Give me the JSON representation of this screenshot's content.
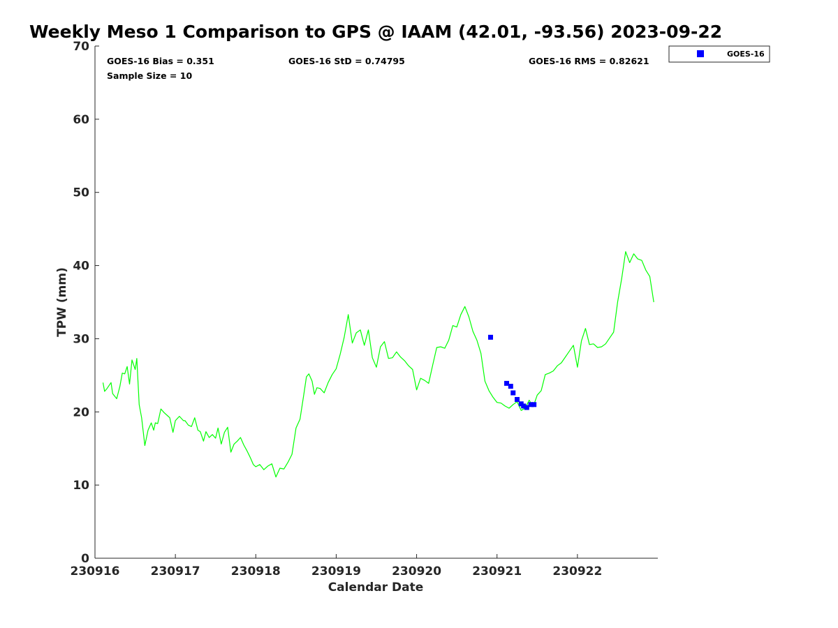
{
  "chart_data": {
    "type": "line",
    "title": "Weekly Meso 1 Comparison to GPS @ IAAM (42.01, -93.56) 2023-09-22",
    "xlabel": "Calendar Date",
    "ylabel": "TPW (mm)",
    "x_unit": "day",
    "xlim": [
      230916,
      230923
    ],
    "ylim": [
      0,
      70
    ],
    "x_ticks": [
      230916,
      230917,
      230918,
      230919,
      230920,
      230921,
      230922
    ],
    "x_tick_labels": [
      "230916",
      "230917",
      "230918",
      "230919",
      "230920",
      "230921",
      "230922"
    ],
    "y_ticks": [
      0,
      10,
      20,
      30,
      40,
      50,
      60,
      70
    ],
    "y_tick_labels": [
      "0",
      "10",
      "20",
      "30",
      "40",
      "50",
      "60",
      "70"
    ],
    "grid": false,
    "legend_position": "top-right (outside axes)",
    "stats": {
      "bias": "GOES-16 Bias = 0.351",
      "std": "GOES-16 StD = 0.74795",
      "rms": "GOES-16 RMS = 0.82621",
      "sample": "Sample Size = 10"
    },
    "series": [
      {
        "role": "gps",
        "style": "line",
        "color": "#00ff00",
        "x": [
          230916.1,
          230916.12,
          230916.15,
          230916.2,
          230916.22,
          230916.27,
          230916.31,
          230916.34,
          230916.37,
          230916.4,
          230916.43,
          230916.46,
          230916.5,
          230916.52,
          230916.55,
          230916.58,
          230916.62,
          230916.66,
          230916.7,
          230916.73,
          230916.75,
          230916.78,
          230916.82,
          230916.86,
          230916.9,
          230916.93,
          230916.97,
          230917.0,
          230917.05,
          230917.1,
          230917.12,
          230917.16,
          230917.2,
          230917.24,
          230917.28,
          230917.31,
          230917.35,
          230917.38,
          230917.42,
          230917.46,
          230917.5,
          230917.53,
          230917.57,
          230917.61,
          230917.65,
          230917.69,
          230917.73,
          230917.77,
          230917.81,
          230917.85,
          230917.89,
          230917.93,
          230917.97,
          230918.0,
          230918.05,
          230918.1,
          230918.15,
          230918.2,
          230918.25,
          230918.3,
          230918.35,
          230918.4,
          230918.45,
          230918.5,
          230918.55,
          230918.6,
          230918.63,
          230918.66,
          230918.7,
          230918.73,
          230918.76,
          230918.8,
          230918.85,
          230918.9,
          230918.95,
          230919.0,
          230919.05,
          230919.1,
          230919.15,
          230919.2,
          230919.25,
          230919.3,
          230919.35,
          230919.4,
          230919.45,
          230919.5,
          230919.55,
          230919.6,
          230919.65,
          230919.7,
          230919.75,
          230919.8,
          230919.85,
          230919.9,
          230919.95,
          230920.0,
          230920.05,
          230920.1,
          230920.15,
          230920.2,
          230920.25,
          230920.3,
          230920.35,
          230920.4,
          230920.45,
          230920.5,
          230920.55,
          230920.6,
          230920.65,
          230920.7,
          230920.75,
          230920.8,
          230920.85,
          230920.9,
          230920.95,
          230921.0,
          230921.05,
          230921.1,
          230921.15,
          230921.2,
          230921.25,
          230921.3,
          230921.35,
          230921.4,
          230921.45,
          230921.5,
          230921.55,
          230921.6,
          230921.65,
          230921.7,
          230921.75,
          230921.8,
          230921.85,
          230921.9,
          230921.95,
          230922.0,
          230922.05,
          230922.1,
          230922.15,
          230922.2,
          230922.25,
          230922.3,
          230922.35,
          230922.4,
          230922.45,
          230922.5,
          230922.55,
          230922.6,
          230922.65,
          230922.7,
          230922.75,
          230922.8,
          230922.85,
          230922.9,
          230922.95
        ],
        "y": [
          24,
          22.8,
          23.2,
          24,
          22.5,
          21.8,
          23.5,
          25.3,
          25.2,
          26.2,
          23.8,
          27.1,
          25.8,
          27.3,
          21,
          19.2,
          15.4,
          17.5,
          18.5,
          17.5,
          18.5,
          18.4,
          20.4,
          19.9,
          19.5,
          19.2,
          17.2,
          18.8,
          19.4,
          18.8,
          18.8,
          18.2,
          18.0,
          19.2,
          17.5,
          17.3,
          16.0,
          17.3,
          16.5,
          16.9,
          16.4,
          17.8,
          15.6,
          17.2,
          17.9,
          14.5,
          15.6,
          16.0,
          16.5,
          15.5,
          14.7,
          13.8,
          12.8,
          12.5,
          12.8,
          12.1,
          12.6,
          12.9,
          11.1,
          12.3,
          12.2,
          13.1,
          14.2,
          17.8,
          19.0,
          22.6,
          24.8,
          25.2,
          24.2,
          22.4,
          23.3,
          23.2,
          22.6,
          24.0,
          25.1,
          25.9,
          27.9,
          30.2,
          33.3,
          29.4,
          30.8,
          31.2,
          29.1,
          31.2,
          27.4,
          26.1,
          28.9,
          29.6,
          27.3,
          27.4,
          28.2,
          27.5,
          27.0,
          26.3,
          25.8,
          23.0,
          24.6,
          24.3,
          23.9,
          26.4,
          28.8,
          28.9,
          28.7,
          29.8,
          31.8,
          31.6,
          33.3,
          34.4,
          33.0,
          31.0,
          29.8,
          28.0,
          24.2,
          22.9,
          22.0,
          21.3,
          21.2,
          20.8,
          20.5,
          21.0,
          21.4,
          20.2,
          20.5,
          21.6,
          20.7,
          22.3,
          22.9,
          25.1,
          25.3,
          25.6,
          26.3,
          26.7,
          27.5,
          28.3,
          29.1,
          26.1,
          29.7,
          31.4,
          29.2,
          29.3,
          28.8,
          28.9,
          29.3,
          30.1,
          30.9,
          35.0,
          38.2,
          41.9,
          40.4,
          41.6,
          40.9,
          40.7,
          39.4,
          38.5,
          35.0
        ]
      },
      {
        "role": "goes",
        "name": "GOES-16",
        "style": "markers",
        "color": "#0000ff",
        "x": [
          230920.92,
          230921.12,
          230921.17,
          230921.2,
          230921.25,
          230921.3,
          230921.33,
          230921.37,
          230921.42,
          230921.46
        ],
        "y": [
          30.2,
          23.9,
          23.5,
          22.6,
          21.7,
          21.1,
          20.8,
          20.6,
          21.0,
          21.0
        ]
      }
    ]
  }
}
